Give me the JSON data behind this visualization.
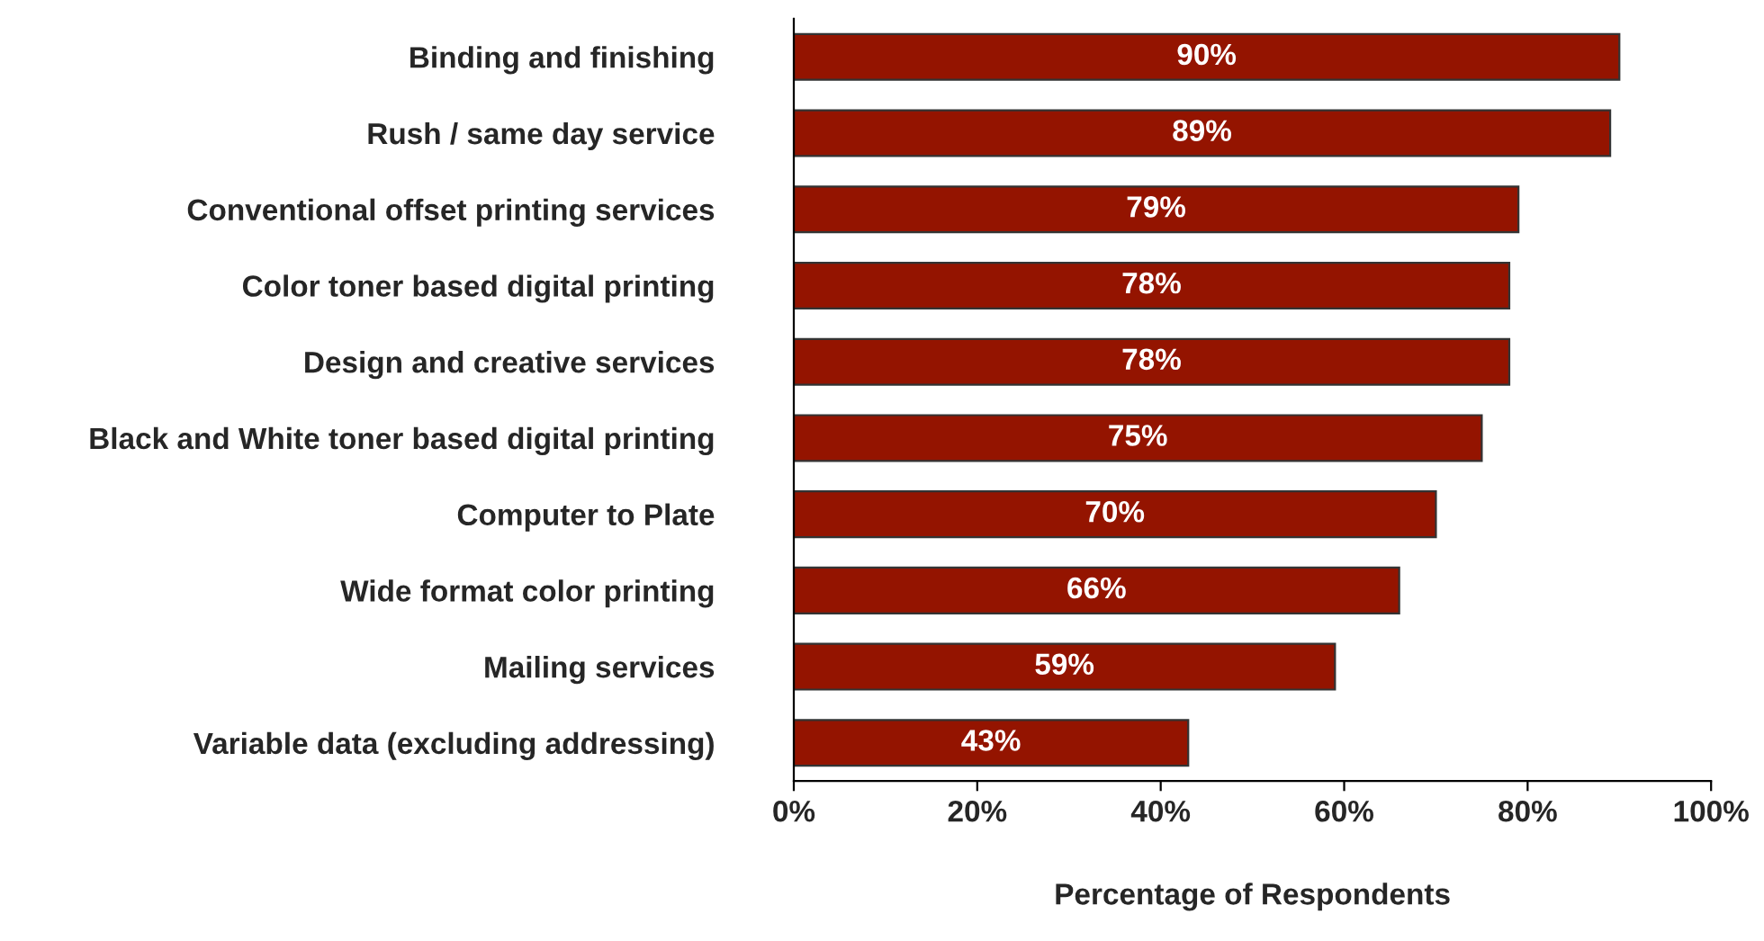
{
  "chart_data": {
    "type": "bar",
    "orientation": "horizontal",
    "xlabel": "Percentage of Respondents",
    "categories": [
      "Binding and finishing",
      "Rush / same day service",
      "Conventional offset printing services",
      "Color toner based digital printing",
      "Design and creative services",
      "Black and White toner based digital printing",
      "Computer to Plate",
      "Wide format color printing",
      "Mailing services",
      "Variable data (excluding addressing)"
    ],
    "values": [
      90,
      89,
      79,
      78,
      78,
      75,
      70,
      66,
      59,
      43
    ],
    "value_labels": [
      "90%",
      "89%",
      "79%",
      "78%",
      "78%",
      "75%",
      "70%",
      "66%",
      "59%",
      "43%"
    ],
    "color": "#941400",
    "xlim": [
      0,
      100
    ],
    "xticks": [
      {
        "value": 0,
        "label": "0%"
      },
      {
        "value": 20,
        "label": "20%"
      },
      {
        "value": 40,
        "label": "40%"
      },
      {
        "value": 60,
        "label": "60%"
      },
      {
        "value": 80,
        "label": "80%"
      },
      {
        "value": 100,
        "label": "100%"
      }
    ],
    "grid": false,
    "legend": false
  }
}
